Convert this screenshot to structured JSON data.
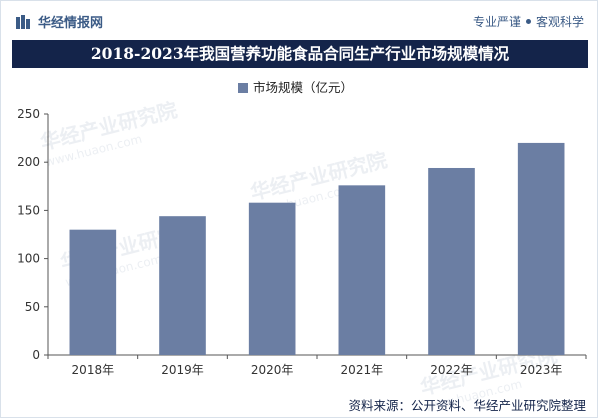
{
  "header": {
    "brand": "华经情报网",
    "slogan_left": "专业严谨",
    "slogan_right": "客观科学"
  },
  "watermark": {
    "text": "华经产业研究院",
    "url": "www.huaon.com"
  },
  "chart_data": {
    "type": "bar",
    "title": "2018-2023年我国营养功能食品合同生产行业市场规模情况",
    "legend": [
      "市场规模（亿元）"
    ],
    "legend_position": "top-center",
    "categories": [
      "2018年",
      "2019年",
      "2020年",
      "2021年",
      "2022年",
      "2023年"
    ],
    "series": [
      {
        "name": "市场规模（亿元）",
        "values": [
          130,
          144,
          158,
          176,
          194,
          220
        ]
      }
    ],
    "xlabel": "",
    "ylabel": "",
    "ylim": [
      0,
      250
    ],
    "yticks": [
      0,
      50,
      100,
      150,
      200,
      250
    ],
    "grid": false,
    "bar_color": "#6b7ea3"
  },
  "footer": {
    "source": "资料来源：公开资料、华经产业研究院整理"
  }
}
